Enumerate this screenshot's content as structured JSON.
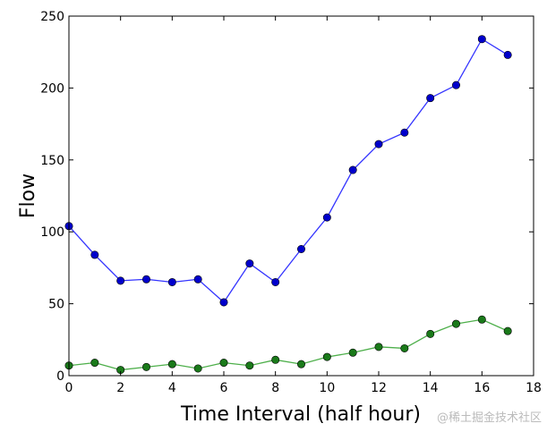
{
  "chart_data": {
    "type": "line",
    "title": "",
    "xlabel": "Time Interval (half hour)",
    "ylabel": "Flow",
    "xlim": [
      0,
      18
    ],
    "ylim": [
      0,
      250
    ],
    "xticks": [
      "0",
      "2",
      "4",
      "6",
      "8",
      "10",
      "12",
      "14",
      "16",
      "18"
    ],
    "yticks": [
      "0",
      "50",
      "100",
      "150",
      "200",
      "250"
    ],
    "grid": false,
    "x": [
      0,
      1,
      2,
      3,
      4,
      5,
      6,
      7,
      8,
      9,
      10,
      11,
      12,
      13,
      14,
      15,
      16,
      17
    ],
    "series": [
      {
        "color": "#3333ff",
        "marker_color": "#0000cc",
        "values": [
          104,
          84,
          66,
          67,
          65,
          67,
          51,
          78,
          65,
          88,
          110,
          143,
          161,
          169,
          193,
          202,
          234,
          223
        ]
      },
      {
        "color": "#4daf4a",
        "marker_color": "#1a7a1a",
        "values": [
          7,
          9,
          4,
          6,
          8,
          5,
          9,
          7,
          11,
          8,
          13,
          16,
          20,
          19,
          29,
          36,
          39,
          31
        ]
      }
    ]
  },
  "watermark": "@稀土掘金技术社区"
}
